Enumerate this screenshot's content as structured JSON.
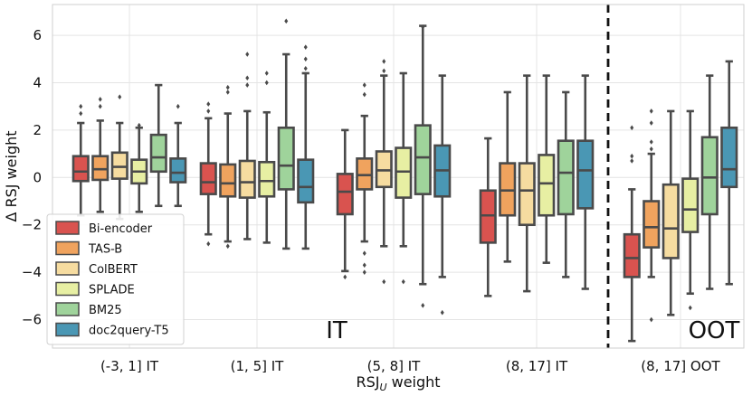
{
  "chart_data": {
    "type": "box",
    "xlabel_main": "RSJ",
    "xlabel_sub": "U",
    "xlabel_tail": " weight",
    "ylabel": "Δ RSJ weight",
    "ylim": [
      -7.2,
      7.3
    ],
    "yticks": [
      -6,
      -4,
      -2,
      0,
      2,
      4,
      6
    ],
    "categories": [
      "(-3, 1] IT",
      "(1, 5] IT",
      "(5, 8] IT",
      "(8, 17] IT",
      "(8, 17] OOT"
    ],
    "region_labels": [
      {
        "text": "IT",
        "region": "in-topic"
      },
      {
        "text": "OOT",
        "region": "out-of-topic"
      }
    ],
    "separator": "dashed vertical line between (8, 17] IT and (8, 17] OOT",
    "legend": {
      "position": "lower-left"
    },
    "series": [
      {
        "name": "Bi-encoder",
        "color": "#d9534f",
        "boxes": [
          {
            "min": -1.6,
            "q1": -0.15,
            "median": 0.25,
            "q3": 0.9,
            "max": 2.3,
            "outliers": [
              2.7,
              3.0
            ]
          },
          {
            "min": -2.4,
            "q1": -0.7,
            "median": -0.2,
            "q3": 0.6,
            "max": 2.5,
            "outliers": [
              -2.8,
              2.8,
              3.1
            ]
          },
          {
            "min": -3.95,
            "q1": -1.55,
            "median": -0.6,
            "q3": 0.15,
            "max": 2.0,
            "outliers": [
              -4.2
            ]
          },
          {
            "min": -5.0,
            "q1": -2.75,
            "median": -1.6,
            "q3": -0.55,
            "max": 1.65,
            "outliers": []
          },
          {
            "min": -6.9,
            "q1": -4.2,
            "median": -3.4,
            "q3": -2.4,
            "max": -0.5,
            "outliers": [
              0.7,
              0.9,
              2.1
            ]
          }
        ]
      },
      {
        "name": "TAS-B",
        "color": "#f0a35e",
        "boxes": [
          {
            "min": -1.45,
            "q1": -0.1,
            "median": 0.35,
            "q3": 0.9,
            "max": 2.4,
            "outliers": [
              3.0,
              3.3
            ]
          },
          {
            "min": -2.7,
            "q1": -0.8,
            "median": -0.25,
            "q3": 0.55,
            "max": 2.7,
            "outliers": [
              -2.9,
              3.6,
              3.8
            ]
          },
          {
            "min": -2.7,
            "q1": -0.5,
            "median": 0.1,
            "q3": 0.8,
            "max": 2.6,
            "outliers": [
              -3.2,
              -3.7,
              -4.0,
              3.5,
              3.9
            ]
          },
          {
            "min": -3.55,
            "q1": -1.6,
            "median": -0.55,
            "q3": 0.6,
            "max": 3.6,
            "outliers": []
          },
          {
            "min": -4.2,
            "q1": -2.95,
            "median": -2.1,
            "q3": -1.0,
            "max": 1.0,
            "outliers": [
              -6.0,
              1.2,
              1.5,
              2.3,
              2.8
            ]
          }
        ]
      },
      {
        "name": "ColBERT",
        "color": "#f6dca0",
        "boxes": [
          {
            "min": -1.75,
            "q1": -0.05,
            "median": 0.45,
            "q3": 1.05,
            "max": 2.3,
            "outliers": [
              3.4
            ]
          },
          {
            "min": -2.6,
            "q1": -0.85,
            "median": -0.2,
            "q3": 0.7,
            "max": 2.8,
            "outliers": [
              3.9,
              4.2,
              5.2
            ]
          },
          {
            "min": -2.9,
            "q1": -0.4,
            "median": 0.3,
            "q3": 1.1,
            "max": 4.3,
            "outliers": [
              -4.4,
              4.5,
              4.9
            ]
          },
          {
            "min": -4.8,
            "q1": -2.0,
            "median": -0.55,
            "q3": 0.6,
            "max": 4.3,
            "outliers": []
          },
          {
            "min": -5.8,
            "q1": -3.4,
            "median": -2.15,
            "q3": -0.3,
            "max": 2.8,
            "outliers": []
          }
        ]
      },
      {
        "name": "SPLADE",
        "color": "#e7efa3",
        "boxes": [
          {
            "min": -1.45,
            "q1": -0.25,
            "median": 0.25,
            "q3": 0.75,
            "max": 2.1,
            "outliers": [
              2.2
            ]
          },
          {
            "min": -2.75,
            "q1": -0.8,
            "median": -0.15,
            "q3": 0.65,
            "max": 2.75,
            "outliers": [
              4.0,
              4.4
            ]
          },
          {
            "min": -2.9,
            "q1": -0.85,
            "median": 0.25,
            "q3": 1.25,
            "max": 4.4,
            "outliers": [
              -4.4
            ]
          },
          {
            "min": -3.6,
            "q1": -1.6,
            "median": -0.25,
            "q3": 0.95,
            "max": 4.3,
            "outliers": []
          },
          {
            "min": -4.9,
            "q1": -2.3,
            "median": -1.35,
            "q3": -0.05,
            "max": 2.8,
            "outliers": [
              -5.5
            ]
          }
        ]
      },
      {
        "name": "BM25",
        "color": "#9fd39b",
        "boxes": [
          {
            "min": -1.2,
            "q1": 0.25,
            "median": 0.85,
            "q3": 1.8,
            "max": 3.9,
            "outliers": []
          },
          {
            "min": -3.0,
            "q1": -0.5,
            "median": 0.5,
            "q3": 2.1,
            "max": 5.2,
            "outliers": [
              6.6
            ]
          },
          {
            "min": -4.5,
            "q1": -0.7,
            "median": 0.85,
            "q3": 2.2,
            "max": 6.4,
            "outliers": [
              -5.4,
              6.35
            ]
          },
          {
            "min": -4.2,
            "q1": -1.55,
            "median": 0.2,
            "q3": 1.55,
            "max": 3.6,
            "outliers": []
          },
          {
            "min": -4.7,
            "q1": -1.55,
            "median": 0.0,
            "q3": 1.7,
            "max": 4.3,
            "outliers": []
          }
        ]
      },
      {
        "name": "doc2query-T5",
        "color": "#4a97b4",
        "boxes": [
          {
            "min": -1.2,
            "q1": -0.2,
            "median": 0.2,
            "q3": 0.8,
            "max": 2.3,
            "outliers": [
              3.0
            ]
          },
          {
            "min": -3.0,
            "q1": -1.05,
            "median": -0.4,
            "q3": 0.75,
            "max": 4.4,
            "outliers": [
              4.6,
              5.0,
              5.5
            ]
          },
          {
            "min": -4.2,
            "q1": -0.8,
            "median": 0.3,
            "q3": 1.35,
            "max": 4.3,
            "outliers": [
              -5.7
            ]
          },
          {
            "min": -4.7,
            "q1": -1.3,
            "median": 0.3,
            "q3": 1.55,
            "max": 4.3,
            "outliers": []
          },
          {
            "min": -4.5,
            "q1": -0.4,
            "median": 0.35,
            "q3": 2.1,
            "max": 4.9,
            "outliers": []
          }
        ]
      }
    ]
  }
}
